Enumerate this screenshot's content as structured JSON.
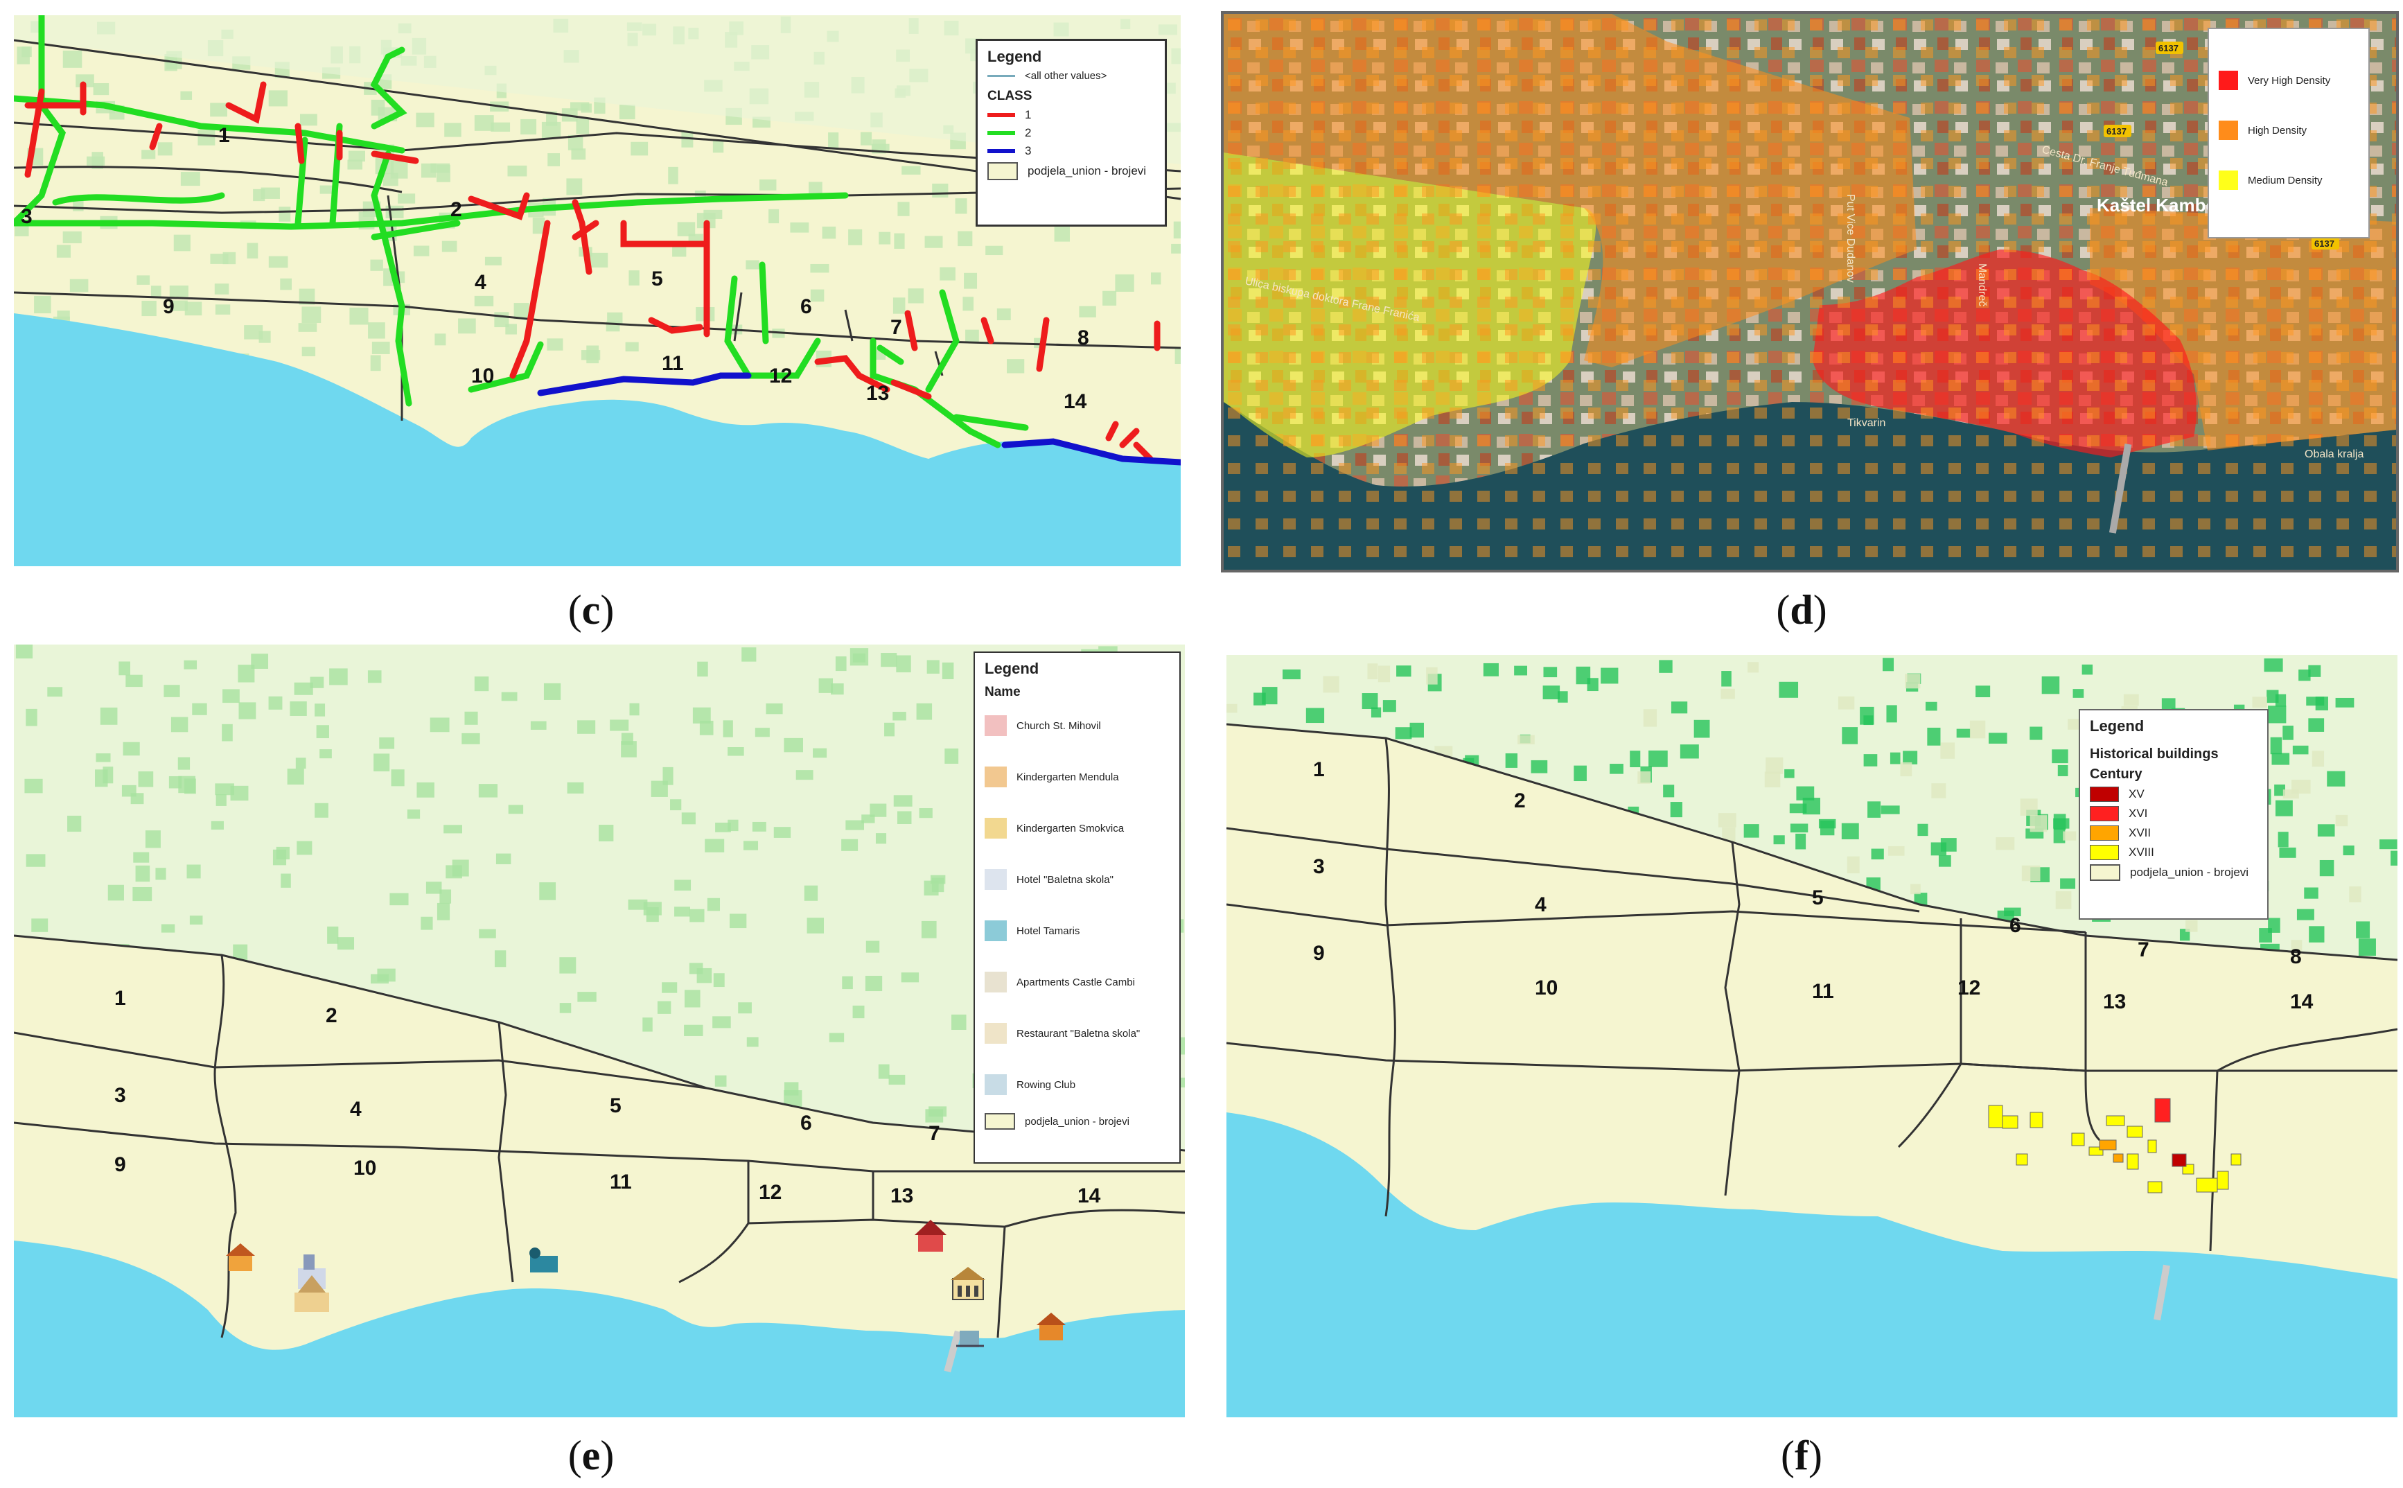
{
  "captions": {
    "c": "c",
    "d": "d",
    "e": "e",
    "f": "f"
  },
  "colors": {
    "land": "#f5f5d0",
    "sea": "#6fd8ef",
    "buildings": "#a8e2a0",
    "buildings_dark": "#25c45a",
    "class1": "#ee1c1c",
    "class2": "#22dd22",
    "class3": "#1111cc",
    "very_high": "#ff1a1a",
    "high": "#ff8c1a",
    "medium": "#ffff1a",
    "xv": "#c00000",
    "xvi": "#ff2020",
    "xvii": "#ffa500",
    "xviii": "#ffff00"
  },
  "zones": [
    "1",
    "2",
    "3",
    "4",
    "5",
    "6",
    "7",
    "8",
    "9",
    "10",
    "11",
    "12",
    "13",
    "14"
  ],
  "panel_c": {
    "legend": {
      "title": "Legend",
      "other": "<all other values>",
      "class_title": "CLASS",
      "items": [
        "1",
        "2",
        "3"
      ],
      "union": "podjela_union - brojevi"
    }
  },
  "panel_d": {
    "legend": {
      "items": [
        "Very High Density",
        "High Density",
        "Medium Density"
      ]
    },
    "streets": [
      "Ulica biskupa doktora Frane Franića",
      "Cesta Dr. Franje Tuđmana",
      "Kaštel Kambelovac",
      "Tikvarin",
      "Obala kralja",
      "Put Vice Dudanov",
      "Mandreč"
    ],
    "road_badges": [
      "6137",
      "6137",
      "6137"
    ]
  },
  "panel_e": {
    "legend": {
      "title": "Legend",
      "name_title": "Name",
      "items": [
        {
          "label": "Church St. Mihovil",
          "icon": "church-icon"
        },
        {
          "label": "Kindergarten Mendula",
          "icon": "kindergarten-icon"
        },
        {
          "label": "Kindergarten Smokvica",
          "icon": "kindergarten-icon"
        },
        {
          "label": "Hotel \"Baletna skola\"",
          "icon": "hotel-icon"
        },
        {
          "label": "Hotel Tamaris",
          "icon": "hotel-icon"
        },
        {
          "label": "Apartments Castle Cambi",
          "icon": "castle-icon"
        },
        {
          "label": "Restaurant \"Baletna skola\"",
          "icon": "restaurant-icon"
        },
        {
          "label": "Rowing Club",
          "icon": "rowing-icon"
        }
      ],
      "union": "podjela_union - brojevi"
    }
  },
  "panel_f": {
    "legend": {
      "title": "Legend",
      "subtitle": "Historical buildings",
      "century_title": "Century",
      "items": [
        "XV",
        "XVI",
        "XVII",
        "XVIII"
      ],
      "union": "podjela_union - brojevi"
    }
  }
}
